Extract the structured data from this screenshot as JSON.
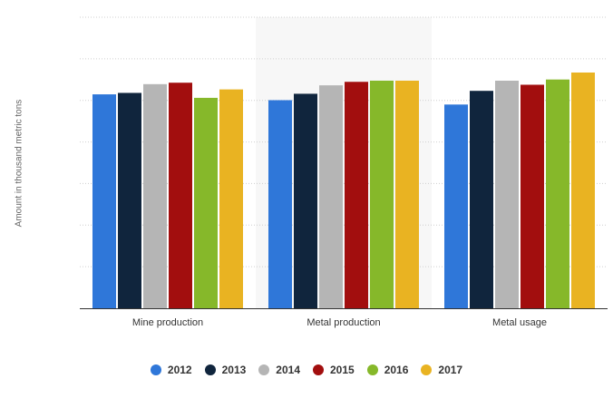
{
  "chart_data": {
    "type": "bar",
    "ylabel": "Amount in thousand metric tons",
    "categories": [
      "Mine production",
      "Metal production",
      "Metal usage"
    ],
    "series": [
      {
        "name": "2012",
        "color": "#2f77d9",
        "values": [
          73.5,
          71.5,
          70.0
        ]
      },
      {
        "name": "2013",
        "color": "#10253d",
        "values": [
          74.0,
          73.7,
          74.7
        ]
      },
      {
        "name": "2014",
        "color": "#b5b5b5",
        "values": [
          77.0,
          76.6,
          78.2
        ]
      },
      {
        "name": "2015",
        "color": "#a20e0e",
        "values": [
          77.5,
          77.8,
          76.8
        ]
      },
      {
        "name": "2016",
        "color": "#86b82a",
        "values": [
          72.3,
          78.2,
          78.6
        ]
      },
      {
        "name": "2017",
        "color": "#e9b322",
        "values": [
          75.2,
          78.2,
          81.0
        ]
      }
    ],
    "ylim": [
      0,
      100
    ],
    "grid": true,
    "highlight_category": "Metal production",
    "legend_position": "bottom"
  }
}
